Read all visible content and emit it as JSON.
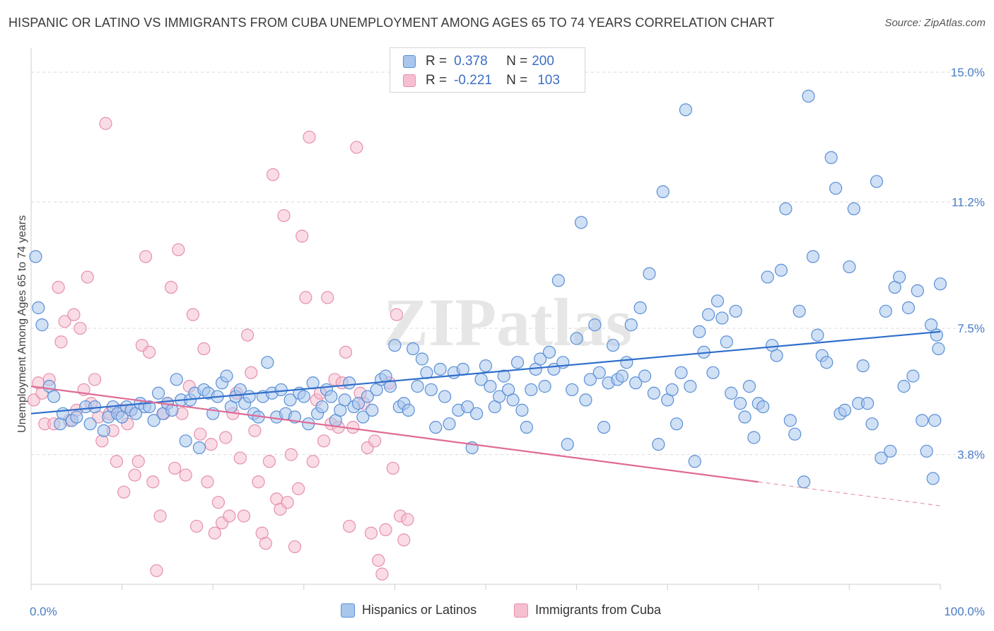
{
  "title": "HISPANIC OR LATINO VS IMMIGRANTS FROM CUBA UNEMPLOYMENT AMONG AGES 65 TO 74 YEARS CORRELATION CHART",
  "source": "Source: ZipAtlas.com",
  "watermark": "ZIPatlas",
  "legend": {
    "rows": [
      {
        "r_label": "R =",
        "r_value": "0.378",
        "n_label": "N =",
        "n_value": "200"
      },
      {
        "r_label": "R =",
        "r_value": "-0.221",
        "n_label": "N =",
        "n_value": "103"
      }
    ]
  },
  "bottom_legend": [
    "Hispanics or Latinos",
    "Immigrants from Cuba"
  ],
  "colors": {
    "blue_fill": "#a9c6ec",
    "blue_stroke": "#5a8fd6",
    "blue_line": "#2f6ecb",
    "pink_fill": "#f6bfd0",
    "pink_stroke": "#e690ad",
    "pink_line": "#e06a96",
    "grid": "#d9d9d9",
    "tick_text": "#4a7bc8"
  },
  "chart_data": {
    "type": "scatter",
    "title": "HISPANIC OR LATINO VS IMMIGRANTS FROM CUBA UNEMPLOYMENT AMONG AGES 65 TO 74 YEARS CORRELATION CHART",
    "xlabel": "",
    "ylabel": "Unemployment Among Ages 65 to 74 years",
    "xlim": [
      0,
      100
    ],
    "ylim": [
      0,
      15.5
    ],
    "x_tick_labels": [
      "0.0%",
      "100.0%"
    ],
    "y_ticks": [
      3.8,
      7.5,
      11.2,
      15.0
    ],
    "y_tick_labels": [
      "3.8%",
      "7.5%",
      "11.2%",
      "15.0%"
    ],
    "grid": "horizontal dashed",
    "legend_placement": "top-center",
    "series": [
      {
        "name": "Hispanics or Latinos",
        "R": 0.378,
        "N": 200,
        "trend": [
          [
            0,
            5.0
          ],
          [
            100,
            7.4
          ]
        ],
        "points": [
          [
            0.5,
            9.6
          ],
          [
            0.8,
            8.1
          ],
          [
            1.2,
            7.6
          ],
          [
            2.0,
            5.8
          ],
          [
            2.5,
            5.5
          ],
          [
            3.2,
            4.7
          ],
          [
            3.5,
            5.0
          ],
          [
            4.5,
            4.8
          ],
          [
            5.0,
            4.9
          ],
          [
            6.0,
            5.2
          ],
          [
            6.5,
            4.7
          ],
          [
            7.0,
            5.2
          ],
          [
            8.0,
            4.5
          ],
          [
            8.5,
            4.9
          ],
          [
            9.0,
            5.2
          ],
          [
            9.5,
            5.0
          ],
          [
            10.0,
            4.9
          ],
          [
            10.5,
            5.2
          ],
          [
            11.0,
            5.1
          ],
          [
            11.5,
            5.0
          ],
          [
            12.0,
            5.3
          ],
          [
            12.5,
            5.2
          ],
          [
            13.0,
            5.2
          ],
          [
            13.5,
            4.8
          ],
          [
            14.0,
            5.6
          ],
          [
            14.5,
            5.0
          ],
          [
            15.0,
            5.3
          ],
          [
            15.5,
            5.1
          ],
          [
            16.0,
            6.0
          ],
          [
            16.5,
            5.4
          ],
          [
            17.0,
            4.2
          ],
          [
            17.5,
            5.4
          ],
          [
            18.0,
            5.6
          ],
          [
            18.5,
            4.0
          ],
          [
            19.0,
            5.7
          ],
          [
            19.5,
            5.6
          ],
          [
            20.0,
            5.0
          ],
          [
            20.5,
            5.5
          ],
          [
            21.0,
            5.9
          ],
          [
            21.5,
            6.1
          ],
          [
            22.0,
            5.2
          ],
          [
            22.5,
            5.5
          ],
          [
            23.0,
            5.7
          ],
          [
            23.5,
            5.3
          ],
          [
            24.0,
            5.5
          ],
          [
            24.5,
            5.0
          ],
          [
            25.0,
            4.9
          ],
          [
            25.5,
            5.5
          ],
          [
            26.0,
            6.5
          ],
          [
            26.5,
            5.6
          ],
          [
            27.0,
            4.9
          ],
          [
            27.5,
            5.7
          ],
          [
            28.0,
            5.0
          ],
          [
            28.5,
            5.4
          ],
          [
            29.0,
            4.9
          ],
          [
            29.5,
            5.6
          ],
          [
            30.0,
            5.5
          ],
          [
            30.5,
            4.7
          ],
          [
            31.0,
            5.9
          ],
          [
            31.5,
            5.0
          ],
          [
            32.0,
            5.2
          ],
          [
            32.5,
            5.7
          ],
          [
            33.0,
            5.5
          ],
          [
            33.5,
            4.8
          ],
          [
            34.0,
            5.1
          ],
          [
            34.5,
            5.4
          ],
          [
            35.0,
            5.9
          ],
          [
            35.5,
            5.2
          ],
          [
            36.0,
            5.3
          ],
          [
            36.5,
            4.9
          ],
          [
            37.0,
            5.5
          ],
          [
            37.5,
            5.1
          ],
          [
            38.0,
            5.7
          ],
          [
            38.5,
            6.0
          ],
          [
            39.0,
            6.1
          ],
          [
            39.5,
            5.8
          ],
          [
            40.0,
            7.0
          ],
          [
            40.5,
            5.2
          ],
          [
            41.0,
            5.3
          ],
          [
            41.5,
            5.1
          ],
          [
            42.0,
            6.9
          ],
          [
            42.5,
            5.8
          ],
          [
            43.0,
            6.6
          ],
          [
            43.5,
            6.2
          ],
          [
            44.0,
            5.7
          ],
          [
            44.5,
            4.6
          ],
          [
            45.0,
            6.3
          ],
          [
            45.5,
            5.5
          ],
          [
            46.0,
            4.7
          ],
          [
            46.5,
            6.2
          ],
          [
            47.0,
            5.1
          ],
          [
            47.5,
            6.3
          ],
          [
            48.0,
            5.2
          ],
          [
            48.5,
            4.0
          ],
          [
            49.0,
            5.0
          ],
          [
            49.5,
            6.0
          ],
          [
            50.0,
            6.4
          ],
          [
            50.5,
            5.8
          ],
          [
            51.0,
            5.2
          ],
          [
            51.5,
            5.5
          ],
          [
            52.0,
            6.1
          ],
          [
            52.5,
            5.7
          ],
          [
            53.0,
            5.4
          ],
          [
            53.5,
            6.5
          ],
          [
            54.0,
            5.1
          ],
          [
            54.5,
            4.6
          ],
          [
            55.0,
            5.7
          ],
          [
            55.5,
            6.3
          ],
          [
            56.0,
            6.6
          ],
          [
            56.5,
            5.8
          ],
          [
            57.0,
            6.8
          ],
          [
            57.5,
            6.3
          ],
          [
            58.0,
            8.9
          ],
          [
            58.5,
            6.5
          ],
          [
            59.0,
            4.1
          ],
          [
            59.5,
            5.7
          ],
          [
            60.0,
            7.2
          ],
          [
            60.5,
            10.6
          ],
          [
            61.0,
            5.4
          ],
          [
            61.5,
            6.0
          ],
          [
            62.0,
            7.6
          ],
          [
            62.5,
            6.2
          ],
          [
            63.0,
            4.6
          ],
          [
            63.5,
            5.9
          ],
          [
            64.0,
            7.0
          ],
          [
            64.5,
            6.0
          ],
          [
            65.0,
            6.1
          ],
          [
            65.5,
            6.5
          ],
          [
            66.0,
            7.6
          ],
          [
            66.5,
            5.9
          ],
          [
            67.0,
            8.1
          ],
          [
            67.5,
            6.1
          ],
          [
            68.0,
            9.1
          ],
          [
            68.5,
            5.6
          ],
          [
            69.0,
            4.1
          ],
          [
            69.5,
            11.5
          ],
          [
            70.0,
            5.4
          ],
          [
            70.5,
            5.7
          ],
          [
            71.0,
            4.7
          ],
          [
            71.5,
            6.2
          ],
          [
            72.0,
            13.9
          ],
          [
            72.5,
            5.8
          ],
          [
            73.0,
            3.6
          ],
          [
            73.5,
            7.4
          ],
          [
            74.0,
            6.8
          ],
          [
            74.5,
            7.9
          ],
          [
            75.0,
            6.2
          ],
          [
            75.5,
            8.3
          ],
          [
            76.0,
            7.8
          ],
          [
            76.5,
            7.1
          ],
          [
            77.0,
            5.6
          ],
          [
            77.5,
            8.0
          ],
          [
            78.0,
            5.3
          ],
          [
            78.5,
            4.9
          ],
          [
            79.0,
            5.8
          ],
          [
            79.5,
            4.3
          ],
          [
            80.0,
            5.3
          ],
          [
            80.5,
            5.2
          ],
          [
            81.0,
            9.0
          ],
          [
            81.5,
            7.0
          ],
          [
            82.0,
            6.7
          ],
          [
            82.5,
            9.2
          ],
          [
            83.0,
            11.0
          ],
          [
            83.5,
            4.8
          ],
          [
            84.0,
            4.4
          ],
          [
            84.5,
            8.0
          ],
          [
            85.0,
            3.0
          ],
          [
            85.5,
            14.3
          ],
          [
            86.0,
            9.6
          ],
          [
            86.5,
            7.3
          ],
          [
            87.0,
            6.7
          ],
          [
            87.5,
            6.5
          ],
          [
            88.0,
            12.5
          ],
          [
            88.5,
            11.6
          ],
          [
            89.0,
            5.0
          ],
          [
            89.5,
            5.1
          ],
          [
            90.0,
            9.3
          ],
          [
            90.5,
            11.0
          ],
          [
            91.0,
            5.3
          ],
          [
            91.5,
            6.4
          ],
          [
            92.0,
            5.3
          ],
          [
            92.5,
            4.7
          ],
          [
            93.0,
            11.8
          ],
          [
            93.5,
            3.7
          ],
          [
            94.0,
            8.0
          ],
          [
            94.5,
            3.9
          ],
          [
            95.0,
            8.7
          ],
          [
            95.5,
            9.0
          ],
          [
            96.0,
            5.8
          ],
          [
            96.5,
            8.1
          ],
          [
            97.0,
            6.1
          ],
          [
            97.5,
            8.6
          ],
          [
            98.0,
            4.8
          ],
          [
            98.5,
            3.9
          ],
          [
            99.0,
            7.6
          ],
          [
            99.2,
            3.1
          ],
          [
            99.4,
            4.8
          ],
          [
            99.6,
            7.3
          ],
          [
            99.8,
            6.9
          ],
          [
            100.0,
            8.8
          ]
        ]
      },
      {
        "name": "Immigrants from Cuba",
        "R": -0.221,
        "N": 103,
        "trend": [
          [
            0,
            5.8
          ],
          [
            80,
            3.0
          ]
        ],
        "trend_dashed": [
          [
            80,
            3.0
          ],
          [
            100,
            2.3
          ]
        ],
        "points": [
          [
            0.3,
            5.4
          ],
          [
            0.8,
            5.9
          ],
          [
            1.2,
            5.6
          ],
          [
            1.5,
            4.7
          ],
          [
            2.0,
            6.0
          ],
          [
            2.5,
            4.7
          ],
          [
            3.0,
            8.7
          ],
          [
            3.3,
            7.1
          ],
          [
            3.7,
            7.7
          ],
          [
            4.2,
            4.8
          ],
          [
            4.7,
            7.9
          ],
          [
            5.0,
            5.1
          ],
          [
            5.4,
            7.5
          ],
          [
            5.8,
            5.7
          ],
          [
            6.2,
            9.0
          ],
          [
            6.6,
            5.3
          ],
          [
            7.0,
            6.0
          ],
          [
            7.4,
            4.9
          ],
          [
            7.8,
            4.2
          ],
          [
            8.2,
            13.5
          ],
          [
            8.6,
            5.0
          ],
          [
            9.0,
            4.5
          ],
          [
            9.4,
            3.6
          ],
          [
            9.8,
            5.1
          ],
          [
            10.2,
            2.7
          ],
          [
            10.6,
            4.7
          ],
          [
            11.0,
            5.1
          ],
          [
            11.4,
            3.2
          ],
          [
            11.8,
            3.6
          ],
          [
            12.2,
            7.0
          ],
          [
            12.6,
            9.6
          ],
          [
            13.0,
            6.8
          ],
          [
            13.4,
            3.0
          ],
          [
            13.8,
            0.4
          ],
          [
            14.2,
            2.0
          ],
          [
            14.6,
            5.0
          ],
          [
            15.0,
            5.3
          ],
          [
            15.4,
            8.7
          ],
          [
            15.8,
            3.4
          ],
          [
            16.2,
            9.8
          ],
          [
            16.6,
            5.0
          ],
          [
            17.0,
            3.2
          ],
          [
            17.4,
            5.8
          ],
          [
            17.8,
            7.9
          ],
          [
            18.2,
            1.7
          ],
          [
            18.6,
            4.4
          ],
          [
            19.0,
            6.9
          ],
          [
            19.4,
            3.0
          ],
          [
            19.8,
            4.1
          ],
          [
            20.2,
            1.5
          ],
          [
            20.6,
            2.4
          ],
          [
            21.0,
            1.8
          ],
          [
            21.4,
            4.3
          ],
          [
            21.8,
            2.0
          ],
          [
            22.2,
            5.0
          ],
          [
            22.6,
            5.6
          ],
          [
            23.0,
            3.7
          ],
          [
            23.4,
            2.0
          ],
          [
            23.8,
            7.3
          ],
          [
            24.2,
            6.2
          ],
          [
            24.6,
            4.5
          ],
          [
            25.0,
            3.0
          ],
          [
            25.4,
            1.5
          ],
          [
            25.8,
            1.2
          ],
          [
            26.2,
            3.6
          ],
          [
            26.6,
            12.0
          ],
          [
            27.0,
            2.5
          ],
          [
            27.4,
            2.2
          ],
          [
            27.8,
            10.8
          ],
          [
            28.2,
            2.4
          ],
          [
            28.6,
            3.8
          ],
          [
            29.0,
            1.1
          ],
          [
            29.4,
            2.8
          ],
          [
            29.8,
            10.2
          ],
          [
            30.2,
            8.4
          ],
          [
            30.6,
            13.1
          ],
          [
            31.0,
            3.6
          ],
          [
            31.4,
            5.4
          ],
          [
            31.8,
            5.6
          ],
          [
            32.2,
            4.2
          ],
          [
            32.6,
            8.4
          ],
          [
            33.0,
            4.7
          ],
          [
            33.4,
            6.0
          ],
          [
            33.8,
            4.6
          ],
          [
            34.2,
            5.9
          ],
          [
            34.6,
            6.8
          ],
          [
            35.0,
            1.7
          ],
          [
            35.4,
            4.6
          ],
          [
            35.8,
            12.8
          ],
          [
            36.2,
            5.6
          ],
          [
            36.6,
            5.3
          ],
          [
            37.0,
            4.0
          ],
          [
            37.4,
            1.5
          ],
          [
            37.8,
            4.2
          ],
          [
            38.2,
            0.7
          ],
          [
            38.6,
            0.3
          ],
          [
            39.0,
            1.6
          ],
          [
            39.4,
            5.9
          ],
          [
            39.8,
            3.4
          ],
          [
            40.2,
            7.9
          ],
          [
            40.6,
            2.0
          ],
          [
            41.0,
            1.3
          ],
          [
            41.4,
            1.9
          ]
        ]
      }
    ]
  }
}
